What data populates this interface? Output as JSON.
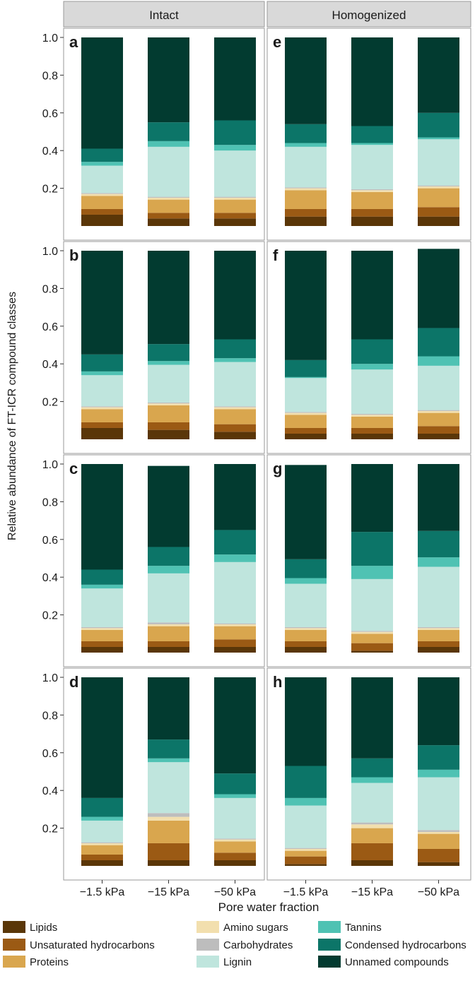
{
  "chart_data": {
    "type": "bar",
    "stacked": true,
    "ylabel": "Relative abundance of FT-ICR compound classes",
    "xlabel": "Pore water fraction",
    "categories": [
      "−1.5 kPa",
      "−15 kPa",
      "−50 kPa"
    ],
    "yticks": [
      "0.2",
      "0.4",
      "0.6",
      "0.8",
      "1.0"
    ],
    "ylim": [
      0,
      1.02
    ],
    "facet_columns": [
      "Intact",
      "Homogenized"
    ],
    "legend": {
      "placement": "bottom",
      "items": [
        {
          "name": "Lipids",
          "color": "#5a3608"
        },
        {
          "name": "Unsaturated hydrocarbons",
          "color": "#9b5a14"
        },
        {
          "name": "Proteins",
          "color": "#d9a64e"
        },
        {
          "name": "Amino sugars",
          "color": "#f2dfae"
        },
        {
          "name": "Carbohydrates",
          "color": "#bdbdbd"
        },
        {
          "name": "Lignin",
          "color": "#bfe5dd"
        },
        {
          "name": "Tannins",
          "color": "#4fc2b3"
        },
        {
          "name": "Condensed hydrocarbons",
          "color": "#0c7568"
        },
        {
          "name": "Unnamed compounds",
          "color": "#023b30"
        }
      ]
    },
    "panels": [
      {
        "label": "a",
        "column": "Intact",
        "row": 0,
        "bars": [
          [
            0.06,
            0.03,
            0.07,
            0.01,
            0.005,
            0.145,
            0.02,
            0.07,
            0.59
          ],
          [
            0.04,
            0.03,
            0.07,
            0.01,
            0.005,
            0.265,
            0.03,
            0.1,
            0.45
          ],
          [
            0.04,
            0.03,
            0.07,
            0.01,
            0.005,
            0.245,
            0.03,
            0.13,
            0.44
          ]
        ]
      },
      {
        "label": "e",
        "column": "Homogenized",
        "row": 0,
        "bars": [
          [
            0.05,
            0.04,
            0.1,
            0.01,
            0.005,
            0.215,
            0.02,
            0.1,
            0.46
          ],
          [
            0.05,
            0.04,
            0.09,
            0.01,
            0.005,
            0.235,
            0.01,
            0.09,
            0.47
          ],
          [
            0.05,
            0.05,
            0.1,
            0.01,
            0.005,
            0.245,
            0.01,
            0.13,
            0.4
          ]
        ]
      },
      {
        "label": "b",
        "column": "Intact",
        "row": 1,
        "bars": [
          [
            0.06,
            0.03,
            0.07,
            0.01,
            0.005,
            0.165,
            0.02,
            0.09,
            0.55
          ],
          [
            0.05,
            0.04,
            0.09,
            0.01,
            0.005,
            0.2,
            0.02,
            0.09,
            0.495
          ],
          [
            0.04,
            0.04,
            0.08,
            0.01,
            0.005,
            0.235,
            0.02,
            0.1,
            0.47
          ]
        ]
      },
      {
        "label": "f",
        "column": "Homogenized",
        "row": 1,
        "bars": [
          [
            0.03,
            0.03,
            0.07,
            0.01,
            0.005,
            0.18,
            0.005,
            0.09,
            0.58
          ],
          [
            0.03,
            0.03,
            0.06,
            0.01,
            0.005,
            0.235,
            0.03,
            0.13,
            0.47
          ],
          [
            0.03,
            0.04,
            0.07,
            0.01,
            0.005,
            0.235,
            0.05,
            0.15,
            0.42
          ]
        ]
      },
      {
        "label": "c",
        "column": "Intact",
        "row": 2,
        "bars": [
          [
            0.03,
            0.03,
            0.06,
            0.01,
            0.005,
            0.205,
            0.02,
            0.08,
            0.56
          ],
          [
            0.03,
            0.03,
            0.08,
            0.01,
            0.01,
            0.26,
            0.04,
            0.1,
            0.43
          ],
          [
            0.03,
            0.04,
            0.07,
            0.01,
            0.005,
            0.325,
            0.04,
            0.13,
            0.35
          ]
        ]
      },
      {
        "label": "g",
        "column": "Homogenized",
        "row": 2,
        "bars": [
          [
            0.03,
            0.03,
            0.06,
            0.01,
            0.005,
            0.23,
            0.03,
            0.1,
            0.5
          ],
          [
            0.01,
            0.04,
            0.05,
            0.01,
            0.005,
            0.275,
            0.07,
            0.18,
            0.36
          ],
          [
            0.03,
            0.03,
            0.06,
            0.01,
            0.005,
            0.32,
            0.05,
            0.14,
            0.355
          ]
        ]
      },
      {
        "label": "d",
        "column": "Intact",
        "row": 3,
        "bars": [
          [
            0.03,
            0.03,
            0.05,
            0.01,
            0.005,
            0.115,
            0.02,
            0.1,
            0.64
          ],
          [
            0.03,
            0.09,
            0.12,
            0.02,
            0.02,
            0.27,
            0.02,
            0.1,
            0.33
          ],
          [
            0.03,
            0.04,
            0.06,
            0.01,
            0.005,
            0.215,
            0.02,
            0.11,
            0.51
          ]
        ]
      },
      {
        "label": "h",
        "column": "Homogenized",
        "row": 3,
        "bars": [
          [
            0.01,
            0.04,
            0.03,
            0.01,
            0.005,
            0.225,
            0.04,
            0.17,
            0.47
          ],
          [
            0.03,
            0.09,
            0.08,
            0.02,
            0.01,
            0.21,
            0.03,
            0.1,
            0.43
          ],
          [
            0.02,
            0.07,
            0.08,
            0.01,
            0.01,
            0.28,
            0.04,
            0.13,
            0.36
          ]
        ]
      }
    ]
  }
}
